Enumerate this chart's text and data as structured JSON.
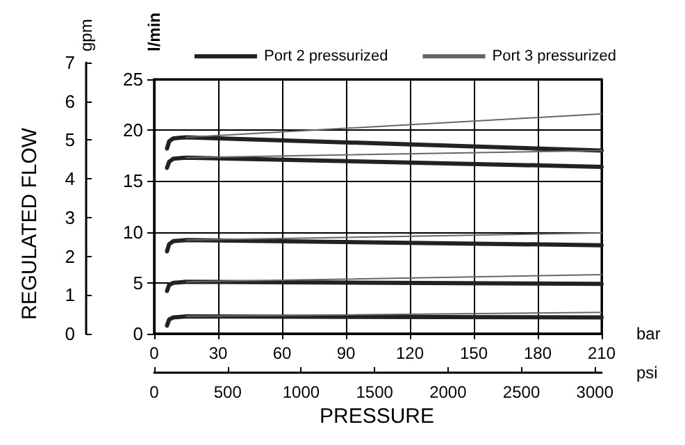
{
  "chart_data": {
    "type": "line",
    "xlabel": "bar",
    "x2label": "psi",
    "ylabel": "l/min",
    "y2label": "gpm",
    "annotations": [
      "PRESSURE",
      "REGULATED FLOW"
    ],
    "xlim": [
      0,
      210
    ],
    "xticks": [
      0,
      30,
      60,
      90,
      120,
      150,
      180,
      210
    ],
    "x2lim": [
      0,
      3046
    ],
    "x2ticks": [
      0,
      500,
      1000,
      1500,
      2000,
      2500,
      3000
    ],
    "ylim": [
      0,
      25
    ],
    "yticks": [
      0,
      5,
      10,
      15,
      20,
      25
    ],
    "y2lim": [
      0,
      7
    ],
    "y2ticks": [
      0,
      1,
      2,
      3,
      4,
      5,
      6,
      7
    ],
    "grid": true,
    "legend": "top",
    "marker": "none",
    "line_style": "solid",
    "series": [
      {
        "name": "Port 2 pressurized",
        "color": "#222222",
        "x": [
          6,
          7,
          9,
          15,
          210
        ],
        "values": [
          18.2,
          18.9,
          19.2,
          19.3,
          18.0
        ]
      },
      {
        "name": "Port 3 pressurized",
        "color": "#666666",
        "x": [
          15,
          210
        ],
        "values": [
          19.3,
          21.6
        ]
      },
      {
        "color": "#222222",
        "x": [
          6,
          7,
          9,
          15,
          210
        ],
        "values": [
          16.3,
          16.9,
          17.2,
          17.3,
          16.4
        ]
      },
      {
        "color": "#666666",
        "x": [
          15,
          210
        ],
        "values": [
          17.3,
          18.0
        ]
      },
      {
        "color": "#222222",
        "x": [
          6,
          7,
          9,
          15,
          210
        ],
        "values": [
          8.1,
          8.8,
          9.1,
          9.2,
          8.7
        ]
      },
      {
        "color": "#666666",
        "x": [
          15,
          210
        ],
        "values": [
          9.2,
          9.9
        ]
      },
      {
        "color": "#222222",
        "x": [
          6,
          7,
          9,
          15,
          210
        ],
        "values": [
          4.2,
          4.8,
          5.0,
          5.1,
          4.9
        ]
      },
      {
        "color": "#666666",
        "x": [
          15,
          210
        ],
        "values": [
          5.1,
          5.8
        ]
      },
      {
        "color": "#222222",
        "x": [
          6,
          7,
          9,
          15,
          210
        ],
        "values": [
          0.8,
          1.4,
          1.6,
          1.7,
          1.6
        ]
      },
      {
        "color": "#666666",
        "x": [
          15,
          210
        ],
        "values": [
          1.7,
          2.1
        ]
      }
    ]
  }
}
